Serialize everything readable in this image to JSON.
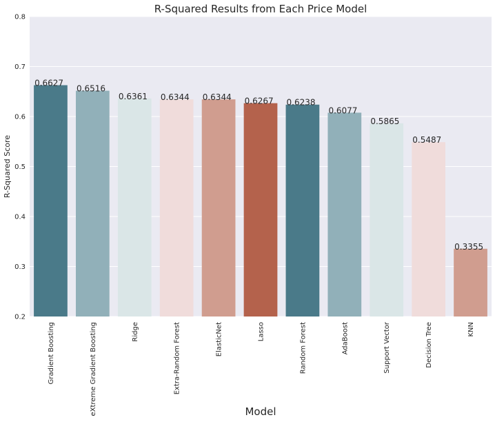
{
  "chart_data": {
    "type": "bar",
    "title": "R-Squared Results from Each Price Model",
    "xlabel": "Model",
    "ylabel": "R-Squared Score",
    "ylim": [
      0.2,
      0.8
    ],
    "yticks": [
      "0.2",
      "0.3",
      "0.4",
      "0.5",
      "0.6",
      "0.7",
      "0.8"
    ],
    "ytick_values": [
      0.2,
      0.3,
      0.4,
      0.5,
      0.6,
      0.7,
      0.8
    ],
    "grid": true,
    "categories": [
      "Gradient Boosting",
      "eXtreme Gradient Boosting",
      "Ridge",
      "Extra-Random Forest",
      "ElasticNet",
      "Lasso",
      "Random Forest",
      "AdaBoost",
      "Support Vector",
      "Decision Tree",
      "KNN"
    ],
    "values": [
      0.6627,
      0.6516,
      0.6361,
      0.6344,
      0.6344,
      0.6267,
      0.6238,
      0.6077,
      0.5865,
      0.5487,
      0.3355
    ],
    "value_labels": [
      "0.6627",
      "0.6516",
      "0.6361",
      "0.6344",
      "0.6344",
      "0.6267",
      "0.6238",
      "0.6077",
      "0.5865",
      "0.5487",
      "0.3355"
    ],
    "colors": [
      "#4a7a89",
      "#91b0b9",
      "#dae6e7",
      "#f0dcdb",
      "#d09d8f",
      "#b4624c",
      "#4a7a89",
      "#91b0b9",
      "#dae6e7",
      "#f0dcdb",
      "#d09d8f"
    ],
    "background_color": "#eaeaf2",
    "grid_color": "#ffffff"
  }
}
